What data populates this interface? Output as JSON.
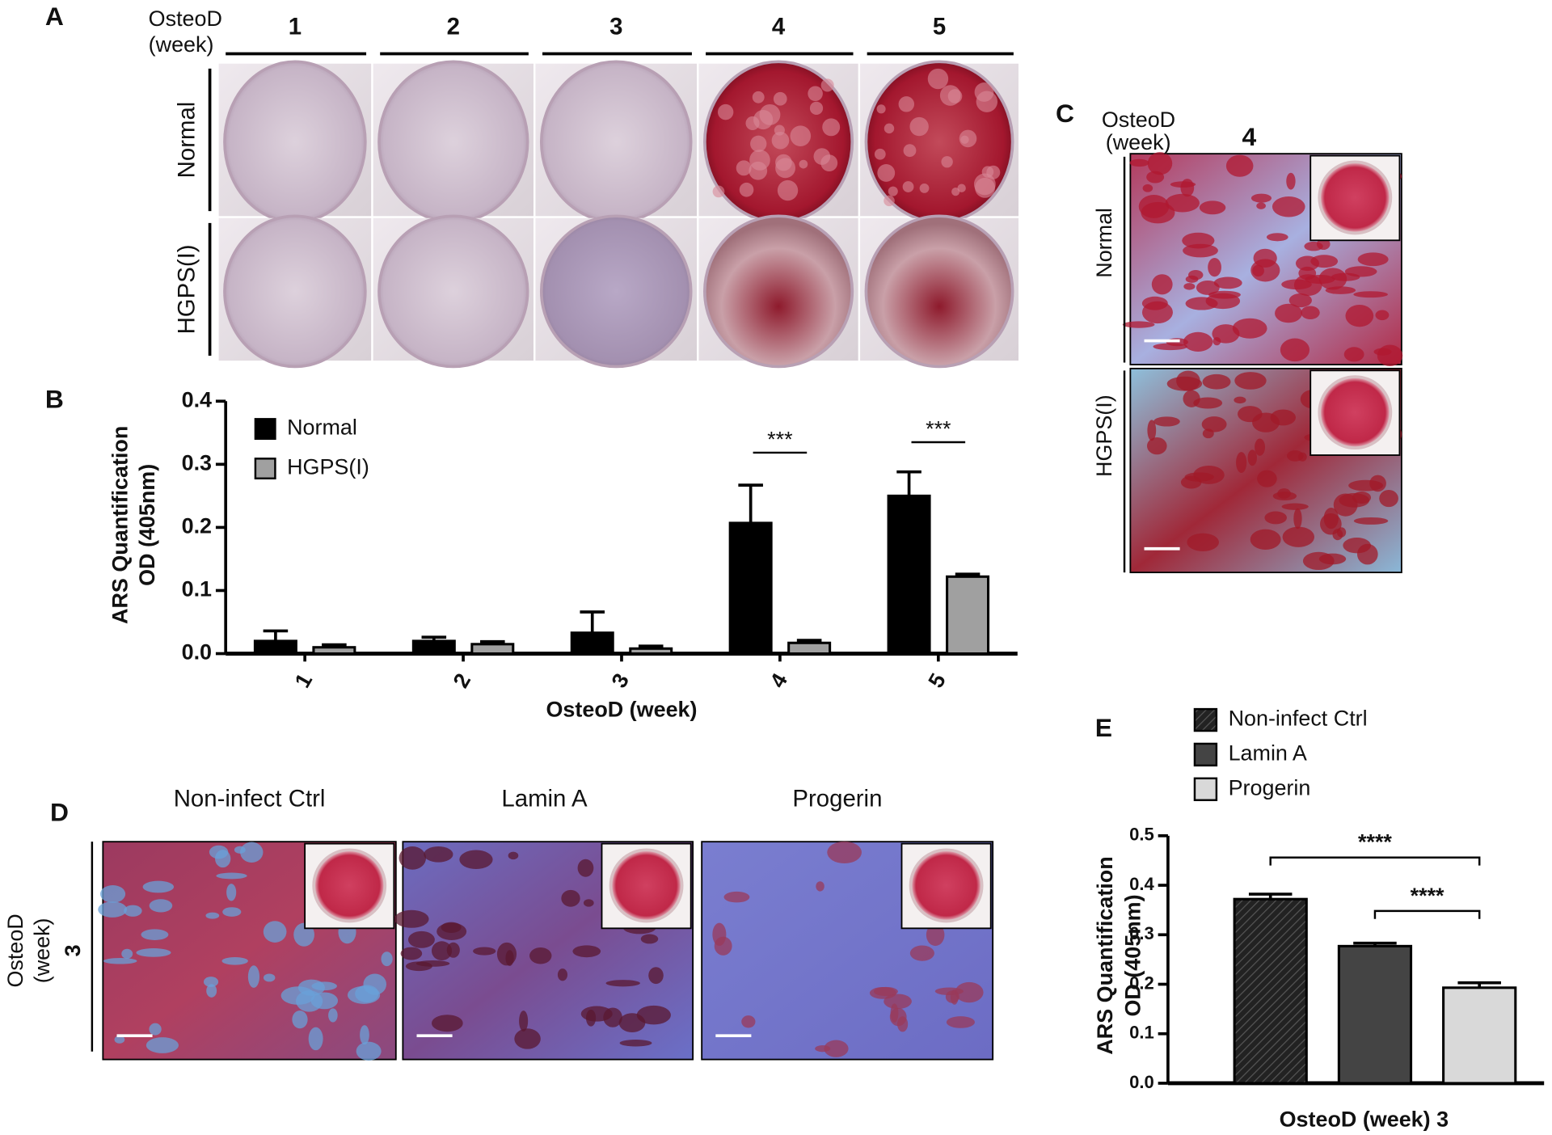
{
  "panel_a": {
    "letter": "A",
    "axis_label": [
      "OsteoD",
      "(week)"
    ],
    "columns": [
      "1",
      "2",
      "3",
      "4",
      "5"
    ],
    "rows": [
      "Normal",
      "HGPS(I)"
    ]
  },
  "panel_c": {
    "letter": "C",
    "axis_label": [
      "OsteoD",
      "(week)"
    ],
    "column": "4",
    "rows": [
      "Normal",
      "HGPS(I)"
    ]
  },
  "panel_d": {
    "letter": "D",
    "columns": [
      "Non-infect Ctrl",
      "Lamin A",
      "Progerin"
    ],
    "row_label": [
      "OsteoD",
      "(week)",
      "3"
    ]
  },
  "chart_data": [
    {
      "type": "bar",
      "letter": "B",
      "y_label": [
        "ARS Quantification",
        "OD (405nm)"
      ],
      "x_label": "OsteoD (week)",
      "categories": [
        "1",
        "2",
        "3",
        "4",
        "5"
      ],
      "series": [
        {
          "name": "Normal",
          "color": "#000000",
          "values": [
            0.02,
            0.02,
            0.033,
            0.207,
            0.25
          ],
          "errors": [
            0.016,
            0.006,
            0.033,
            0.06,
            0.038
          ]
        },
        {
          "name": "HGPS(I)",
          "color": "#a0a0a0",
          "values": [
            0.01,
            0.015,
            0.008,
            0.017,
            0.122
          ],
          "errors": [
            0.004,
            0.004,
            0.004,
            0.004,
            0.004
          ]
        }
      ],
      "ylim": [
        0,
        0.4
      ],
      "yticks": [
        {
          "value": 0,
          "label": "0.0"
        },
        0.1,
        0.2,
        0.3,
        0.4
      ],
      "annotations": [
        {
          "text": "***",
          "x": "4"
        },
        {
          "text": "***",
          "x": "5"
        }
      ]
    },
    {
      "type": "bar",
      "letter": "E",
      "y_label": [
        "ARS Quantification",
        "OD (405nm)"
      ],
      "x_label": "OsteoD (week) 3",
      "series": [
        {
          "name": "Non-infect Ctrl",
          "color": "#222222",
          "hatch": true,
          "values": [
            0.372
          ],
          "errors": [
            0.01
          ]
        },
        {
          "name": "Lamin A",
          "color": "#444444",
          "values": [
            0.277
          ],
          "errors": [
            0.006
          ]
        },
        {
          "name": "Progerin",
          "color": "#d9d9d9",
          "values": [
            0.193
          ],
          "errors": [
            0.01
          ]
        }
      ],
      "ylim": [
        0,
        0.5
      ],
      "yticks": [
        {
          "value": 0,
          "label": "0.0"
        },
        0.1,
        0.2,
        0.3,
        0.4,
        0.5
      ],
      "annotations": [
        {
          "text": "****",
          "from": "Non-infect Ctrl",
          "to": "Progerin"
        },
        {
          "text": "****",
          "from": "Lamin A",
          "to": "Progerin"
        }
      ]
    }
  ]
}
